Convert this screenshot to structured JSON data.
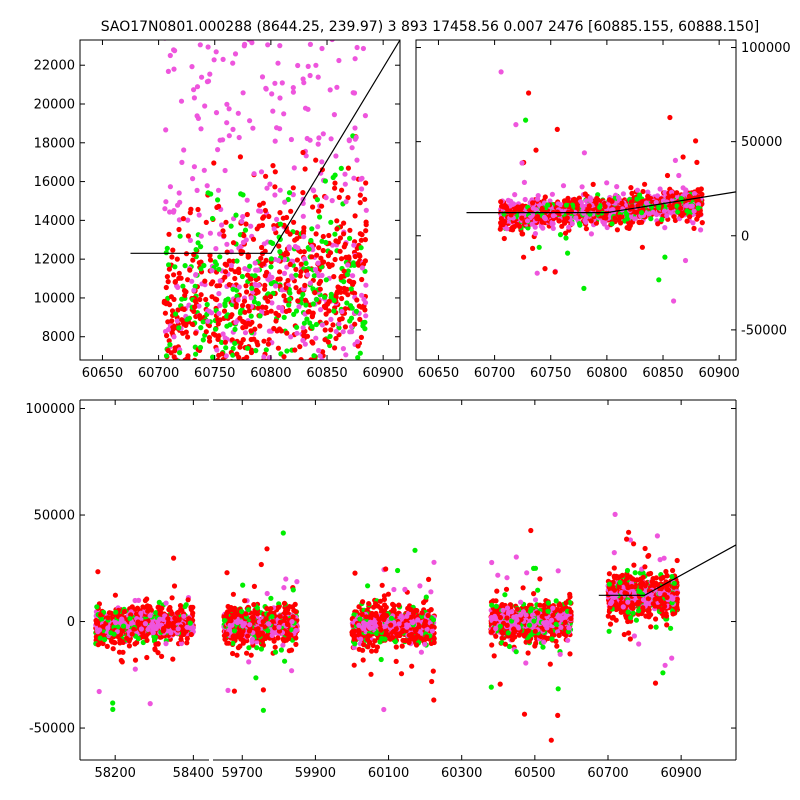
{
  "title": "SAO17N0801.000288 (8644.25, 239.97)   3 893 17458.56 0.007 2476 [60885.155, 60888.150]",
  "colors": {
    "red": "#ff0000",
    "green": "#00ee00",
    "magenta": "#ee55dd",
    "trend": "#000000"
  },
  "chart_data": [
    {
      "type": "scatter",
      "name": "top-left-zoom",
      "xlim": [
        60630,
        60915
      ],
      "ylim": [
        6800,
        23300
      ],
      "x_ticks": [
        60650,
        60700,
        60750,
        60800,
        60850,
        60900
      ],
      "y_ticks": [
        8000,
        10000,
        12000,
        14000,
        16000,
        18000,
        20000,
        22000
      ],
      "y_axis_side": "left",
      "grid": false,
      "trend_line": [
        [
          60675,
          12300
        ],
        [
          60800,
          12300
        ],
        [
          60915,
          23300
        ]
      ],
      "scatter_summary": {
        "x_range": [
          60700,
          60885
        ],
        "y_core": [
          6800,
          23300
        ],
        "note_colors": [
          "red",
          "green",
          "magenta"
        ]
      }
    },
    {
      "type": "scatter",
      "name": "top-right-overview",
      "xlim": [
        60630,
        60915
      ],
      "ylim": [
        -66000,
        104000
      ],
      "x_ticks": [
        60650,
        60700,
        60750,
        60800,
        60850,
        60900
      ],
      "y_ticks": [
        -50000,
        0,
        50000,
        100000
      ],
      "y_axis_side": "right",
      "grid": false,
      "trend_line": [
        [
          60675,
          12300
        ],
        [
          60800,
          12300
        ],
        [
          60915,
          23300
        ]
      ],
      "scatter_summary": {
        "x_range": [
          60705,
          60885
        ],
        "y_core": [
          5000,
          20000
        ]
      }
    },
    {
      "type": "scatter",
      "name": "bottom-seasons",
      "ylim": [
        -65000,
        104000
      ],
      "y_ticks": [
        -50000,
        0,
        50000,
        100000
      ],
      "x_ticks": [
        58200,
        58400,
        59700,
        59900,
        60100,
        60300,
        60500,
        60700,
        60900
      ],
      "x_segments": [
        [
          58110,
          58440
        ],
        [
          59620,
          61050
        ]
      ],
      "grid": false,
      "seasons": [
        {
          "x_range": [
            58150,
            58400
          ],
          "center": -2000
        },
        {
          "x_range": [
            59650,
            59850
          ],
          "center": -2000
        },
        {
          "x_range": [
            60000,
            60225
          ],
          "center": -2000
        },
        {
          "x_range": [
            60380,
            60600
          ],
          "center": 0
        },
        {
          "x_range": [
            60700,
            60890
          ],
          "center": 12000
        }
      ],
      "trend_line": [
        [
          60675,
          12300
        ],
        [
          60800,
          12300
        ],
        [
          61050,
          36000
        ]
      ]
    }
  ]
}
